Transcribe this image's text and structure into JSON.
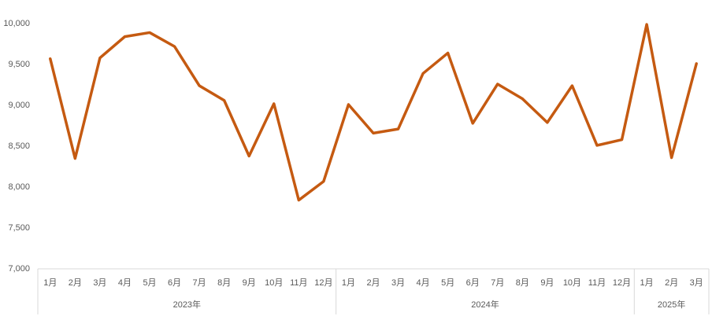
{
  "chart_data": {
    "type": "line",
    "category_groups": [
      {
        "label": "2023年",
        "categories": [
          "1月",
          "2月",
          "3月",
          "4月",
          "5月",
          "6月",
          "7月",
          "8月",
          "9月",
          "10月",
          "11月",
          "12月"
        ]
      },
      {
        "label": "2024年",
        "categories": [
          "1月",
          "2月",
          "3月",
          "4月",
          "5月",
          "6月",
          "7月",
          "8月",
          "9月",
          "10月",
          "11月",
          "12月"
        ]
      },
      {
        "label": "2025年",
        "categories": [
          "1月",
          "2月",
          "3月"
        ]
      }
    ],
    "series": [
      {
        "color": "#c55a11",
        "values": [
          9570,
          8350,
          9580,
          9840,
          9890,
          9720,
          9240,
          9060,
          8380,
          9020,
          7840,
          8070,
          9010,
          8660,
          8710,
          9390,
          9640,
          8780,
          9260,
          9080,
          8790,
          9240,
          8510,
          8580,
          9990,
          8360,
          9510
        ]
      }
    ],
    "ylim": [
      7000,
      10000
    ],
    "yticks": [
      {
        "value": 7000,
        "label": "7,000"
      },
      {
        "value": 7500,
        "label": "7,500"
      },
      {
        "value": 8000,
        "label": "8,000"
      },
      {
        "value": 8500,
        "label": "8,500"
      },
      {
        "value": 9000,
        "label": "9,000"
      },
      {
        "value": 9500,
        "label": "9,500"
      },
      {
        "value": 10000,
        "label": "10,000"
      }
    ],
    "grid": false
  }
}
